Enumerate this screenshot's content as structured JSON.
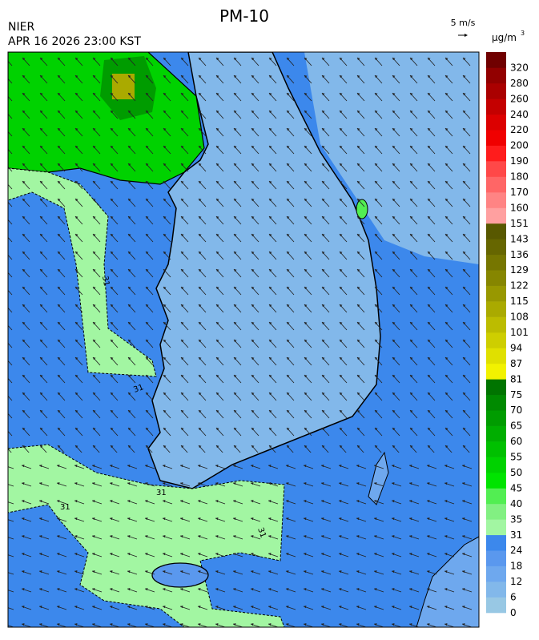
{
  "header": {
    "title": "PM-10",
    "agency": "NIER",
    "datetime": "APR 16 2026 23:00 KST",
    "wind_scale": "5 m/s"
  },
  "colorbar": {
    "unit": "μg/m",
    "unit_exponent": "3",
    "levels": [
      "0",
      "6",
      "12",
      "18",
      "24",
      "31",
      "35",
      "40",
      "45",
      "50",
      "55",
      "60",
      "65",
      "70",
      "75",
      "81",
      "87",
      "94",
      "101",
      "108",
      "115",
      "122",
      "129",
      "136",
      "143",
      "151",
      "160",
      "170",
      "180",
      "190",
      "200",
      "220",
      "240",
      "260",
      "280",
      "320"
    ],
    "colors": [
      "#98c8e4",
      "#82b8ea",
      "#6ea8ee",
      "#5a98ee",
      "#3c88ec",
      "#a2f6a2",
      "#82f082",
      "#52ee52",
      "#00e400",
      "#00d200",
      "#00c000",
      "#00ae00",
      "#009c00",
      "#008a00",
      "#007400",
      "#f2f200",
      "#e0e000",
      "#cece00",
      "#bcbc00",
      "#aaaa00",
      "#989800",
      "#868600",
      "#767600",
      "#666600",
      "#585800",
      "#ffa0a0",
      "#ff8484",
      "#ff6666",
      "#ff4848",
      "#ff1c1c",
      "#f00000",
      "#dc0000",
      "#c40000",
      "#aa0000",
      "#920000",
      "#700000"
    ]
  },
  "map": {
    "contour_labels": [
      "31",
      "31",
      "31",
      "31",
      "31"
    ]
  }
}
